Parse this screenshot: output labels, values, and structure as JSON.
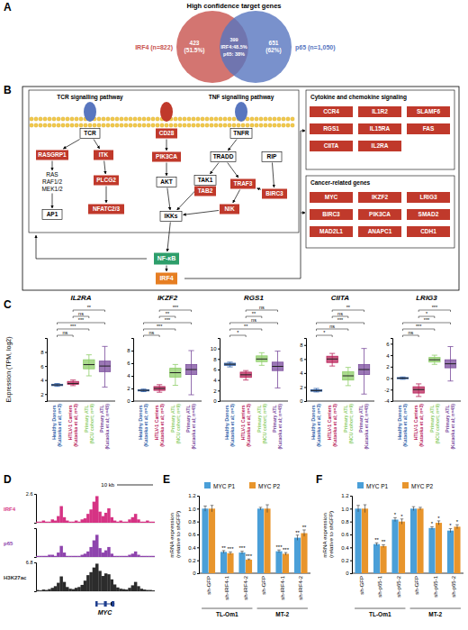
{
  "panel_labels": [
    "A",
    "B",
    "C",
    "D",
    "E",
    "F"
  ],
  "venn": {
    "title": "High confidence target genes",
    "sets": [
      {
        "label": "IRF4 (n=822)",
        "color": "#c8524e"
      },
      {
        "label": "p65 (n=1,050)",
        "color": "#5876bf"
      }
    ],
    "regions": [
      [
        "423",
        "(51.5%)"
      ],
      [
        "399",
        "IRF4:48.5%",
        "p65: 38%"
      ],
      [
        "651",
        "(62%)"
      ]
    ]
  },
  "pathway": {
    "pathway_labels": [
      "TCR signalling pathway",
      "TNF signalling pathway"
    ],
    "nodes": [
      {
        "label": "TCR",
        "style": "plain"
      },
      {
        "label": "CD28",
        "style": "target"
      },
      {
        "label": "TNFR",
        "style": "plain"
      },
      {
        "label": "RASGRP1",
        "style": "target"
      },
      {
        "label": "ITK",
        "style": "target"
      },
      {
        "label": "PIK3CA",
        "style": "target"
      },
      {
        "label": "TRADD",
        "style": "plain"
      },
      {
        "label": "RIP",
        "style": "plain"
      },
      {
        "label": "RAS",
        "style": "text"
      },
      {
        "label": "RAF1/2",
        "style": "text"
      },
      {
        "label": "MEK1/2",
        "style": "text"
      },
      {
        "label": "PLCG2",
        "style": "target"
      },
      {
        "label": "AKT",
        "style": "plain"
      },
      {
        "label": "TAK1",
        "style": "plain"
      },
      {
        "label": "TAB2",
        "style": "target"
      },
      {
        "label": "TRAF3",
        "style": "target"
      },
      {
        "label": "AP1",
        "style": "plain"
      },
      {
        "label": "NFATC2/3",
        "style": "target"
      },
      {
        "label": "IKKs",
        "style": "plain"
      },
      {
        "label": "NIK",
        "style": "target"
      },
      {
        "label": "BIRC3",
        "style": "target"
      },
      {
        "label": "NF-κB",
        "style": "nfkb"
      },
      {
        "label": "IRF4",
        "style": "irf4"
      }
    ],
    "modules": [
      {
        "title": "Cytokine and chemokine signaling",
        "genes": [
          "CCR4",
          "IL1R2",
          "SLAMF6",
          "RGS1",
          "IL15RA",
          "FAS",
          "CIITA",
          "IL2RA"
        ]
      },
      {
        "title": "Cancer-related genes",
        "genes": [
          "MYC",
          "IKZF2",
          "LRIG3",
          "BIRC3",
          "PIK3CA",
          "SMAD2",
          "MAD2L1",
          "ANAPC1",
          "CDH1"
        ]
      }
    ]
  },
  "chart_data": [
    {
      "type": "box",
      "title": "IL2RA",
      "y_label": "Expression (TPM, log2)",
      "categories": [
        "Healthy Donors (Kataoka et al; n=3)",
        "HTLV-1 Carriers (Kataoka et al; n=3)",
        "Primary ATL (NCU cohort; n=9)",
        "Primary ATL (Kataoka et al; n=45)"
      ],
      "colors": [
        "#2e5fa8",
        "#b8235a",
        "#8fce6a",
        "#7a4b9c"
      ],
      "boxes": [
        {
          "min": 3.1,
          "q1": 3.2,
          "median": 3.3,
          "q3": 3.4,
          "max": 3.5
        },
        {
          "min": 3.2,
          "q1": 3.4,
          "median": 3.5,
          "q3": 3.8,
          "max": 4.0
        },
        {
          "min": 4.6,
          "q1": 5.6,
          "median": 6.2,
          "q3": 6.9,
          "max": 7.6
        },
        {
          "min": 3.0,
          "q1": 5.2,
          "median": 6.0,
          "q3": 6.7,
          "max": 8.8
        }
      ],
      "ylim": [
        1,
        10
      ],
      "yticks": [
        2,
        4,
        6,
        8
      ],
      "significance": [
        {
          "groups": [
            0,
            1
          ],
          "label": "ns"
        },
        {
          "groups": [
            0,
            2
          ],
          "label": "***"
        },
        {
          "groups": [
            0,
            3
          ],
          "label": "***"
        },
        {
          "groups": [
            1,
            2
          ],
          "label": "ns"
        },
        {
          "groups": [
            1,
            3
          ],
          "label": "**"
        }
      ]
    },
    {
      "type": "box",
      "title": "IKZF2",
      "categories": [
        "Healthy Donors (Kataoka et al; n=3)",
        "HTLV-1 Carriers (Kataoka et al; n=3)",
        "Primary ATL (NCU cohort; n=9)",
        "Primary ATL (Kataoka et al; n=45)"
      ],
      "colors": [
        "#2e5fa8",
        "#b8235a",
        "#8fce6a",
        "#7a4b9c"
      ],
      "boxes": [
        {
          "min": 1.5,
          "q1": 1.6,
          "median": 1.7,
          "q3": 1.8,
          "max": 1.9
        },
        {
          "min": 1.4,
          "q1": 1.7,
          "median": 2.0,
          "q3": 2.3,
          "max": 2.6
        },
        {
          "min": 2.5,
          "q1": 3.8,
          "median": 4.5,
          "q3": 5.2,
          "max": 5.8
        },
        {
          "min": 1.0,
          "q1": 4.2,
          "median": 5.0,
          "q3": 5.8,
          "max": 8.0
        }
      ],
      "ylim": [
        0,
        10
      ],
      "yticks": [
        0,
        2,
        4,
        6,
        8
      ],
      "significance": [
        {
          "groups": [
            0,
            1
          ],
          "label": "ns"
        },
        {
          "groups": [
            0,
            2
          ],
          "label": "***"
        },
        {
          "groups": [
            0,
            3
          ],
          "label": "***"
        },
        {
          "groups": [
            1,
            2
          ],
          "label": "**"
        },
        {
          "groups": [
            1,
            3
          ],
          "label": "***"
        }
      ]
    },
    {
      "type": "box",
      "title": "RGS1",
      "categories": [
        "Healthy Donors (Kataoka et al; n=3)",
        "HTLV-1 Carriers (Kataoka et al; n=3)",
        "Primary ATL (NCU cohort; n=9)",
        "Primary ATL (Kataoka et al; n=45)"
      ],
      "colors": [
        "#2e5fa8",
        "#b8235a",
        "#8fce6a",
        "#7a4b9c"
      ],
      "boxes": [
        {
          "min": 6.5,
          "q1": 6.8,
          "median": 7.0,
          "q3": 7.2,
          "max": 7.4
        },
        {
          "min": 4.0,
          "q1": 4.5,
          "median": 5.0,
          "q3": 5.5,
          "max": 5.8
        },
        {
          "min": 6.8,
          "q1": 7.5,
          "median": 8.0,
          "q3": 8.6,
          "max": 9.2
        },
        {
          "min": 2.5,
          "q1": 5.8,
          "median": 6.6,
          "q3": 7.4,
          "max": 9.5
        }
      ],
      "ylim": [
        0,
        12
      ],
      "yticks": [
        0,
        2,
        4,
        6,
        8,
        10
      ],
      "significance": [
        {
          "groups": [
            0,
            1
          ],
          "label": "*"
        },
        {
          "groups": [
            0,
            2
          ],
          "label": "**"
        },
        {
          "groups": [
            0,
            3
          ],
          "label": "ns"
        },
        {
          "groups": [
            1,
            2
          ],
          "label": "**"
        },
        {
          "groups": [
            1,
            3
          ],
          "label": "ns"
        }
      ]
    },
    {
      "type": "box",
      "title": "CIITA",
      "categories": [
        "Healthy Donors (Kataoka et al; n=3)",
        "HTLV-1 Carriers (Kataoka et al; n=3)",
        "Primary ATL (NCU cohort; n=9)",
        "Primary ATL (Kataoka et al; n=45)"
      ],
      "colors": [
        "#2e5fa8",
        "#b8235a",
        "#8fce6a",
        "#7a4b9c"
      ],
      "boxes": [
        {
          "min": 1.3,
          "q1": 1.4,
          "median": 1.5,
          "q3": 1.6,
          "max": 1.8
        },
        {
          "min": 5.0,
          "q1": 5.5,
          "median": 6.0,
          "q3": 6.4,
          "max": 6.8
        },
        {
          "min": 2.2,
          "q1": 3.0,
          "median": 3.6,
          "q3": 4.2,
          "max": 4.8
        },
        {
          "min": 1.0,
          "q1": 3.8,
          "median": 4.5,
          "q3": 5.2,
          "max": 7.5
        }
      ],
      "ylim": [
        0,
        9
      ],
      "yticks": [
        0,
        2,
        4,
        6,
        8
      ],
      "significance": [
        {
          "groups": [
            0,
            1
          ],
          "label": "*"
        },
        {
          "groups": [
            0,
            2
          ],
          "label": "ns"
        },
        {
          "groups": [
            0,
            3
          ],
          "label": "***"
        },
        {
          "groups": [
            1,
            2
          ],
          "label": "ns"
        },
        {
          "groups": [
            1,
            3
          ],
          "label": "**"
        }
      ]
    },
    {
      "type": "box",
      "title": "LRIG3",
      "categories": [
        "Healthy Donors (Kataoka et al; n=3)",
        "HTLV-1 Carriers (Kataoka et al; n=3)",
        "Primary ATL (NCU cohort; n=9)",
        "Primary ATL (Kataoka et al; n=45)"
      ],
      "colors": [
        "#2e5fa8",
        "#b8235a",
        "#8fce6a",
        "#7a4b9c"
      ],
      "boxes": [
        {
          "min": -0.2,
          "q1": -0.1,
          "median": 0,
          "q3": 0.1,
          "max": 0.2
        },
        {
          "min": -3.2,
          "q1": -2.6,
          "median": -2.0,
          "q3": -1.5,
          "max": -1.0
        },
        {
          "min": 2.4,
          "q1": 2.8,
          "median": 3.2,
          "q3": 3.6,
          "max": 4.0
        },
        {
          "min": -0.5,
          "q1": 1.8,
          "median": 2.5,
          "q3": 3.2,
          "max": 5.5
        }
      ],
      "ylim": [
        -4,
        7
      ],
      "yticks": [
        -4,
        -2,
        0,
        2,
        4,
        6
      ],
      "significance": [
        {
          "groups": [
            0,
            1
          ],
          "label": "ns"
        },
        {
          "groups": [
            0,
            2
          ],
          "label": "***"
        },
        {
          "groups": [
            0,
            3
          ],
          "label": "***"
        },
        {
          "groups": [
            1,
            2
          ],
          "label": "*"
        },
        {
          "groups": [
            1,
            3
          ],
          "label": "***"
        }
      ]
    },
    {
      "type": "bar",
      "y_label": "mRNA expression (relative to shGFP)",
      "categories": [
        "sh-GFP",
        "sh-IRF4-1",
        "sh-IRF4-2",
        "sh-GFP",
        "sh-IRF4-1",
        "sh-IRF4-2"
      ],
      "group_labels": [
        "TL-Om1",
        "MT-2"
      ],
      "series": [
        {
          "name": "MYC P1",
          "color": "#4a9fd8",
          "values": [
            1.0,
            0.33,
            0.32,
            1.0,
            0.34,
            0.55
          ],
          "errors": [
            0.04,
            0.02,
            0.02,
            0.02,
            0.02,
            0.04
          ],
          "significance": [
            null,
            "**",
            "***",
            null,
            "***",
            "**"
          ]
        },
        {
          "name": "MYC P2",
          "color": "#e8952c",
          "values": [
            1.0,
            0.31,
            0.21,
            1.0,
            0.3,
            0.62
          ],
          "errors": [
            0.05,
            0.02,
            0.01,
            0.06,
            0.02,
            0.05
          ],
          "significance": [
            null,
            "***",
            "***",
            null,
            "***",
            "**"
          ]
        }
      ],
      "ylim": [
        0,
        1.2
      ],
      "yticks": [
        0,
        0.2,
        0.4,
        0.6,
        0.8,
        {
          "value": 1,
          "label": "1.0"
        },
        1.2
      ],
      "legend": "top"
    },
    {
      "type": "bar",
      "y_label": "mRNA expression (relative to shGFP)",
      "categories": [
        "sh-GFP",
        "sh-p65-1",
        "sh-p65-2",
        "sh-GFP",
        "sh-p65-1",
        "sh-p65-2"
      ],
      "group_labels": [
        "TL-Om1",
        "MT-2"
      ],
      "series": [
        {
          "name": "MYC P1",
          "color": "#4a9fd8",
          "values": [
            1.0,
            0.45,
            0.83,
            1.0,
            0.7,
            0.66
          ],
          "errors": [
            0.05,
            0.02,
            0.03,
            0.03,
            0.02,
            0.03
          ],
          "significance": [
            null,
            "**",
            "*",
            null,
            "*",
            "*"
          ]
        },
        {
          "name": "MYC P2",
          "color": "#e8952c",
          "values": [
            1.0,
            0.42,
            0.8,
            1.0,
            0.78,
            0.72
          ],
          "errors": [
            0.06,
            0.02,
            0.04,
            0.02,
            0.03,
            0.03
          ],
          "significance": [
            null,
            "**",
            "*",
            null,
            "*",
            "*"
          ]
        }
      ],
      "ylim": [
        0,
        1.2
      ],
      "yticks": [
        0,
        0.2,
        0.4,
        0.6,
        0.8,
        {
          "value": 1,
          "label": "1.0"
        },
        1.2
      ],
      "legend": "top"
    }
  ],
  "genome_track": {
    "scale_label": "10 kb",
    "gene": "MYC",
    "tracks": [
      {
        "name": "IRF4",
        "color": "#d63384",
        "ylim": [
          0,
          2.6
        ],
        "yticks": [
          2.6
        ],
        "signal": [
          0.1,
          0.1,
          0.2,
          0.1,
          0.1,
          0.3,
          0.2,
          0.6,
          1.5,
          0.5,
          0.2,
          0.1,
          0.1,
          0.2,
          0.1,
          0.3,
          0.4,
          0.8,
          1.2,
          1.9,
          2.4,
          1.0,
          0.6,
          0.9,
          1.3,
          0.5,
          0.2,
          0.1,
          0.2,
          0.1,
          0.1,
          0.3,
          0.5,
          0.8,
          0.3,
          0.1,
          0.1,
          0.2,
          0.1,
          0.1
        ]
      },
      {
        "name": "p65",
        "color": "#8e44ad",
        "ylim": [
          0,
          2.6
        ],
        "yticks": [],
        "signal": [
          0.1,
          0.1,
          0.1,
          0.1,
          0.2,
          0.2,
          0.1,
          0.4,
          1.0,
          0.4,
          0.1,
          0.1,
          0.1,
          0.1,
          0.1,
          0.2,
          0.3,
          0.5,
          0.9,
          1.5,
          2.0,
          0.8,
          0.4,
          0.6,
          0.9,
          0.3,
          0.1,
          0.1,
          0.1,
          0.1,
          0.1,
          0.2,
          0.3,
          0.5,
          0.2,
          0.1,
          0.1,
          0.1,
          0.1,
          0.1
        ]
      },
      {
        "name": "H3K27ac",
        "color": "#2c2c2c",
        "ylim": [
          0,
          6.8
        ],
        "yticks": [
          6.8
        ],
        "signal": [
          0.3,
          0.2,
          0.4,
          0.3,
          0.5,
          0.8,
          1.2,
          2.0,
          3.5,
          2.2,
          1.0,
          0.6,
          0.5,
          0.8,
          1.0,
          1.5,
          2.5,
          3.8,
          4.5,
          5.6,
          6.5,
          4.8,
          3.6,
          4.2,
          4.0,
          2.8,
          1.6,
          0.9,
          0.6,
          0.5,
          0.4,
          0.8,
          1.4,
          2.2,
          1.2,
          0.6,
          0.4,
          0.3,
          0.3,
          0.2
        ]
      }
    ]
  }
}
